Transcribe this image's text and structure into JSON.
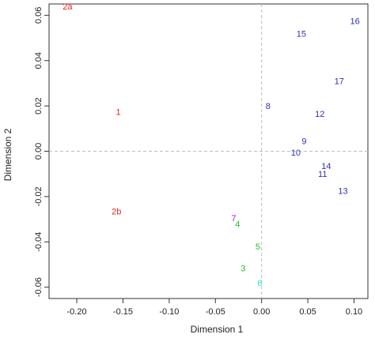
{
  "chart_data": {
    "type": "scatter",
    "title": "",
    "xlabel": "Dimension 1",
    "ylabel": "Dimension 2",
    "xlim": [
      -0.23,
      0.115
    ],
    "ylim": [
      -0.065,
      0.065
    ],
    "x_ticks": [
      -0.2,
      -0.15,
      -0.1,
      -0.05,
      0.0,
      0.05,
      0.1
    ],
    "y_ticks": [
      -0.06,
      -0.04,
      -0.02,
      0.0,
      0.02,
      0.04,
      0.06
    ],
    "x_tick_labels": [
      "-0.20",
      "-0.15",
      "-0.10",
      "-0.05",
      "0.00",
      "0.05",
      "0.10"
    ],
    "y_tick_labels": [
      "-0.06",
      "-0.04",
      "-0.02",
      "0.00",
      "0.02",
      "0.04",
      "0.06"
    ],
    "reference_lines": {
      "x": 0,
      "y": 0,
      "style": "dashed"
    },
    "grid": false,
    "legend": "none",
    "points": [
      {
        "label": "2a",
        "x": -0.21,
        "y": 0.064,
        "color": "#e8231f"
      },
      {
        "label": "1",
        "x": -0.155,
        "y": 0.0175,
        "color": "#e8231f"
      },
      {
        "label": "2b",
        "x": -0.157,
        "y": -0.0265,
        "color": "#e8231f"
      },
      {
        "label": "7",
        "x": -0.03,
        "y": -0.0295,
        "color": "#a020c8"
      },
      {
        "label": "4",
        "x": -0.026,
        "y": -0.032,
        "color": "#22c01e"
      },
      {
        "label": "5",
        "x": -0.004,
        "y": -0.042,
        "color": "#22c01e"
      },
      {
        "label": "3",
        "x": -0.02,
        "y": -0.0515,
        "color": "#22c01e"
      },
      {
        "label": "6",
        "x": -0.002,
        "y": -0.058,
        "color": "#2ee0e8"
      },
      {
        "label": "8",
        "x": 0.007,
        "y": 0.02,
        "color": "#3030b8"
      },
      {
        "label": "15",
        "x": 0.043,
        "y": 0.052,
        "color": "#3030b8"
      },
      {
        "label": "16",
        "x": 0.101,
        "y": 0.0575,
        "color": "#3030b8"
      },
      {
        "label": "17",
        "x": 0.084,
        "y": 0.031,
        "color": "#3030b8"
      },
      {
        "label": "12",
        "x": 0.063,
        "y": 0.0165,
        "color": "#3030b8"
      },
      {
        "label": "9",
        "x": 0.046,
        "y": 0.0045,
        "color": "#3030b8"
      },
      {
        "label": "10",
        "x": 0.037,
        "y": -0.0005,
        "color": "#3030b8"
      },
      {
        "label": "14",
        "x": 0.07,
        "y": -0.0065,
        "color": "#3030b8"
      },
      {
        "label": "11",
        "x": 0.066,
        "y": -0.01,
        "color": "#3030b8"
      },
      {
        "label": "13",
        "x": 0.088,
        "y": -0.0175,
        "color": "#3030b8"
      }
    ]
  }
}
